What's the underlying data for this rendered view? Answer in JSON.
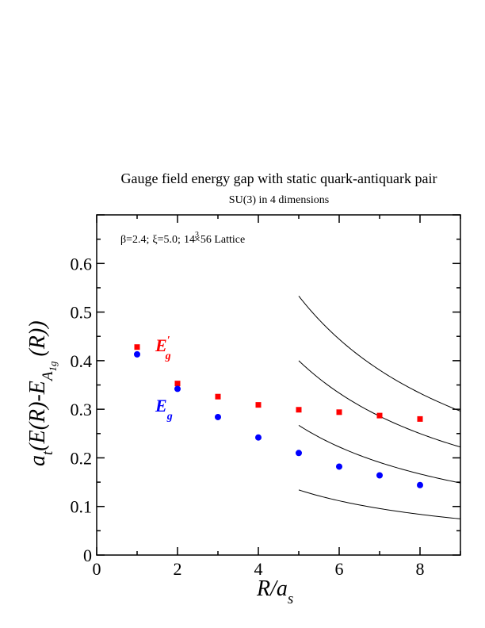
{
  "chart_data": {
    "type": "scatter",
    "title": "Gauge field energy gap with static quark-antiquark pair",
    "subtitle": "SU(3) in 4 dimensions",
    "annotation": {
      "beta": "β=2.4;",
      "xi": "ξ=5.0;",
      "lattice_base": "14",
      "lattice_exp": "3",
      "lattice_rest": "×56 Lattice"
    },
    "xlabel": {
      "main": "R/a",
      "sub": "s"
    },
    "ylabel": {
      "a": "a",
      "a_sub": "t",
      "body": "(E(R)-E",
      "e_sub": "A",
      "e_subsub": "1g",
      "tail": "(R))"
    },
    "xlim": [
      0,
      9
    ],
    "ylim": [
      0,
      0.7
    ],
    "xticks": [
      "0",
      "2",
      "4",
      "6",
      "8"
    ],
    "yticks": [
      "0",
      "0.1",
      "0.2",
      "0.3",
      "0.4",
      "0.5",
      "0.6"
    ],
    "grid": false,
    "series": [
      {
        "label_main": "E",
        "label_sub": "g",
        "label_prime": "′",
        "color": "#ff0000",
        "marker": "square",
        "x": [
          1,
          2,
          3,
          4,
          5,
          6,
          7,
          8
        ],
        "y": [
          0.428,
          0.353,
          0.326,
          0.309,
          0.299,
          0.294,
          0.287,
          0.28
        ]
      },
      {
        "label_main": "E",
        "label_sub": "g",
        "label_prime": "",
        "color": "#0000ff",
        "marker": "circle",
        "x": [
          1,
          2,
          3,
          4,
          5,
          6,
          7,
          8
        ],
        "y": [
          0.413,
          0.342,
          0.284,
          0.242,
          0.21,
          0.182,
          0.164,
          0.144
        ]
      }
    ],
    "curves": {
      "color": "#000000",
      "x_start": 5,
      "x_end": 9,
      "y_at_start": [
        0.134,
        0.267,
        0.4,
        0.533
      ]
    }
  }
}
